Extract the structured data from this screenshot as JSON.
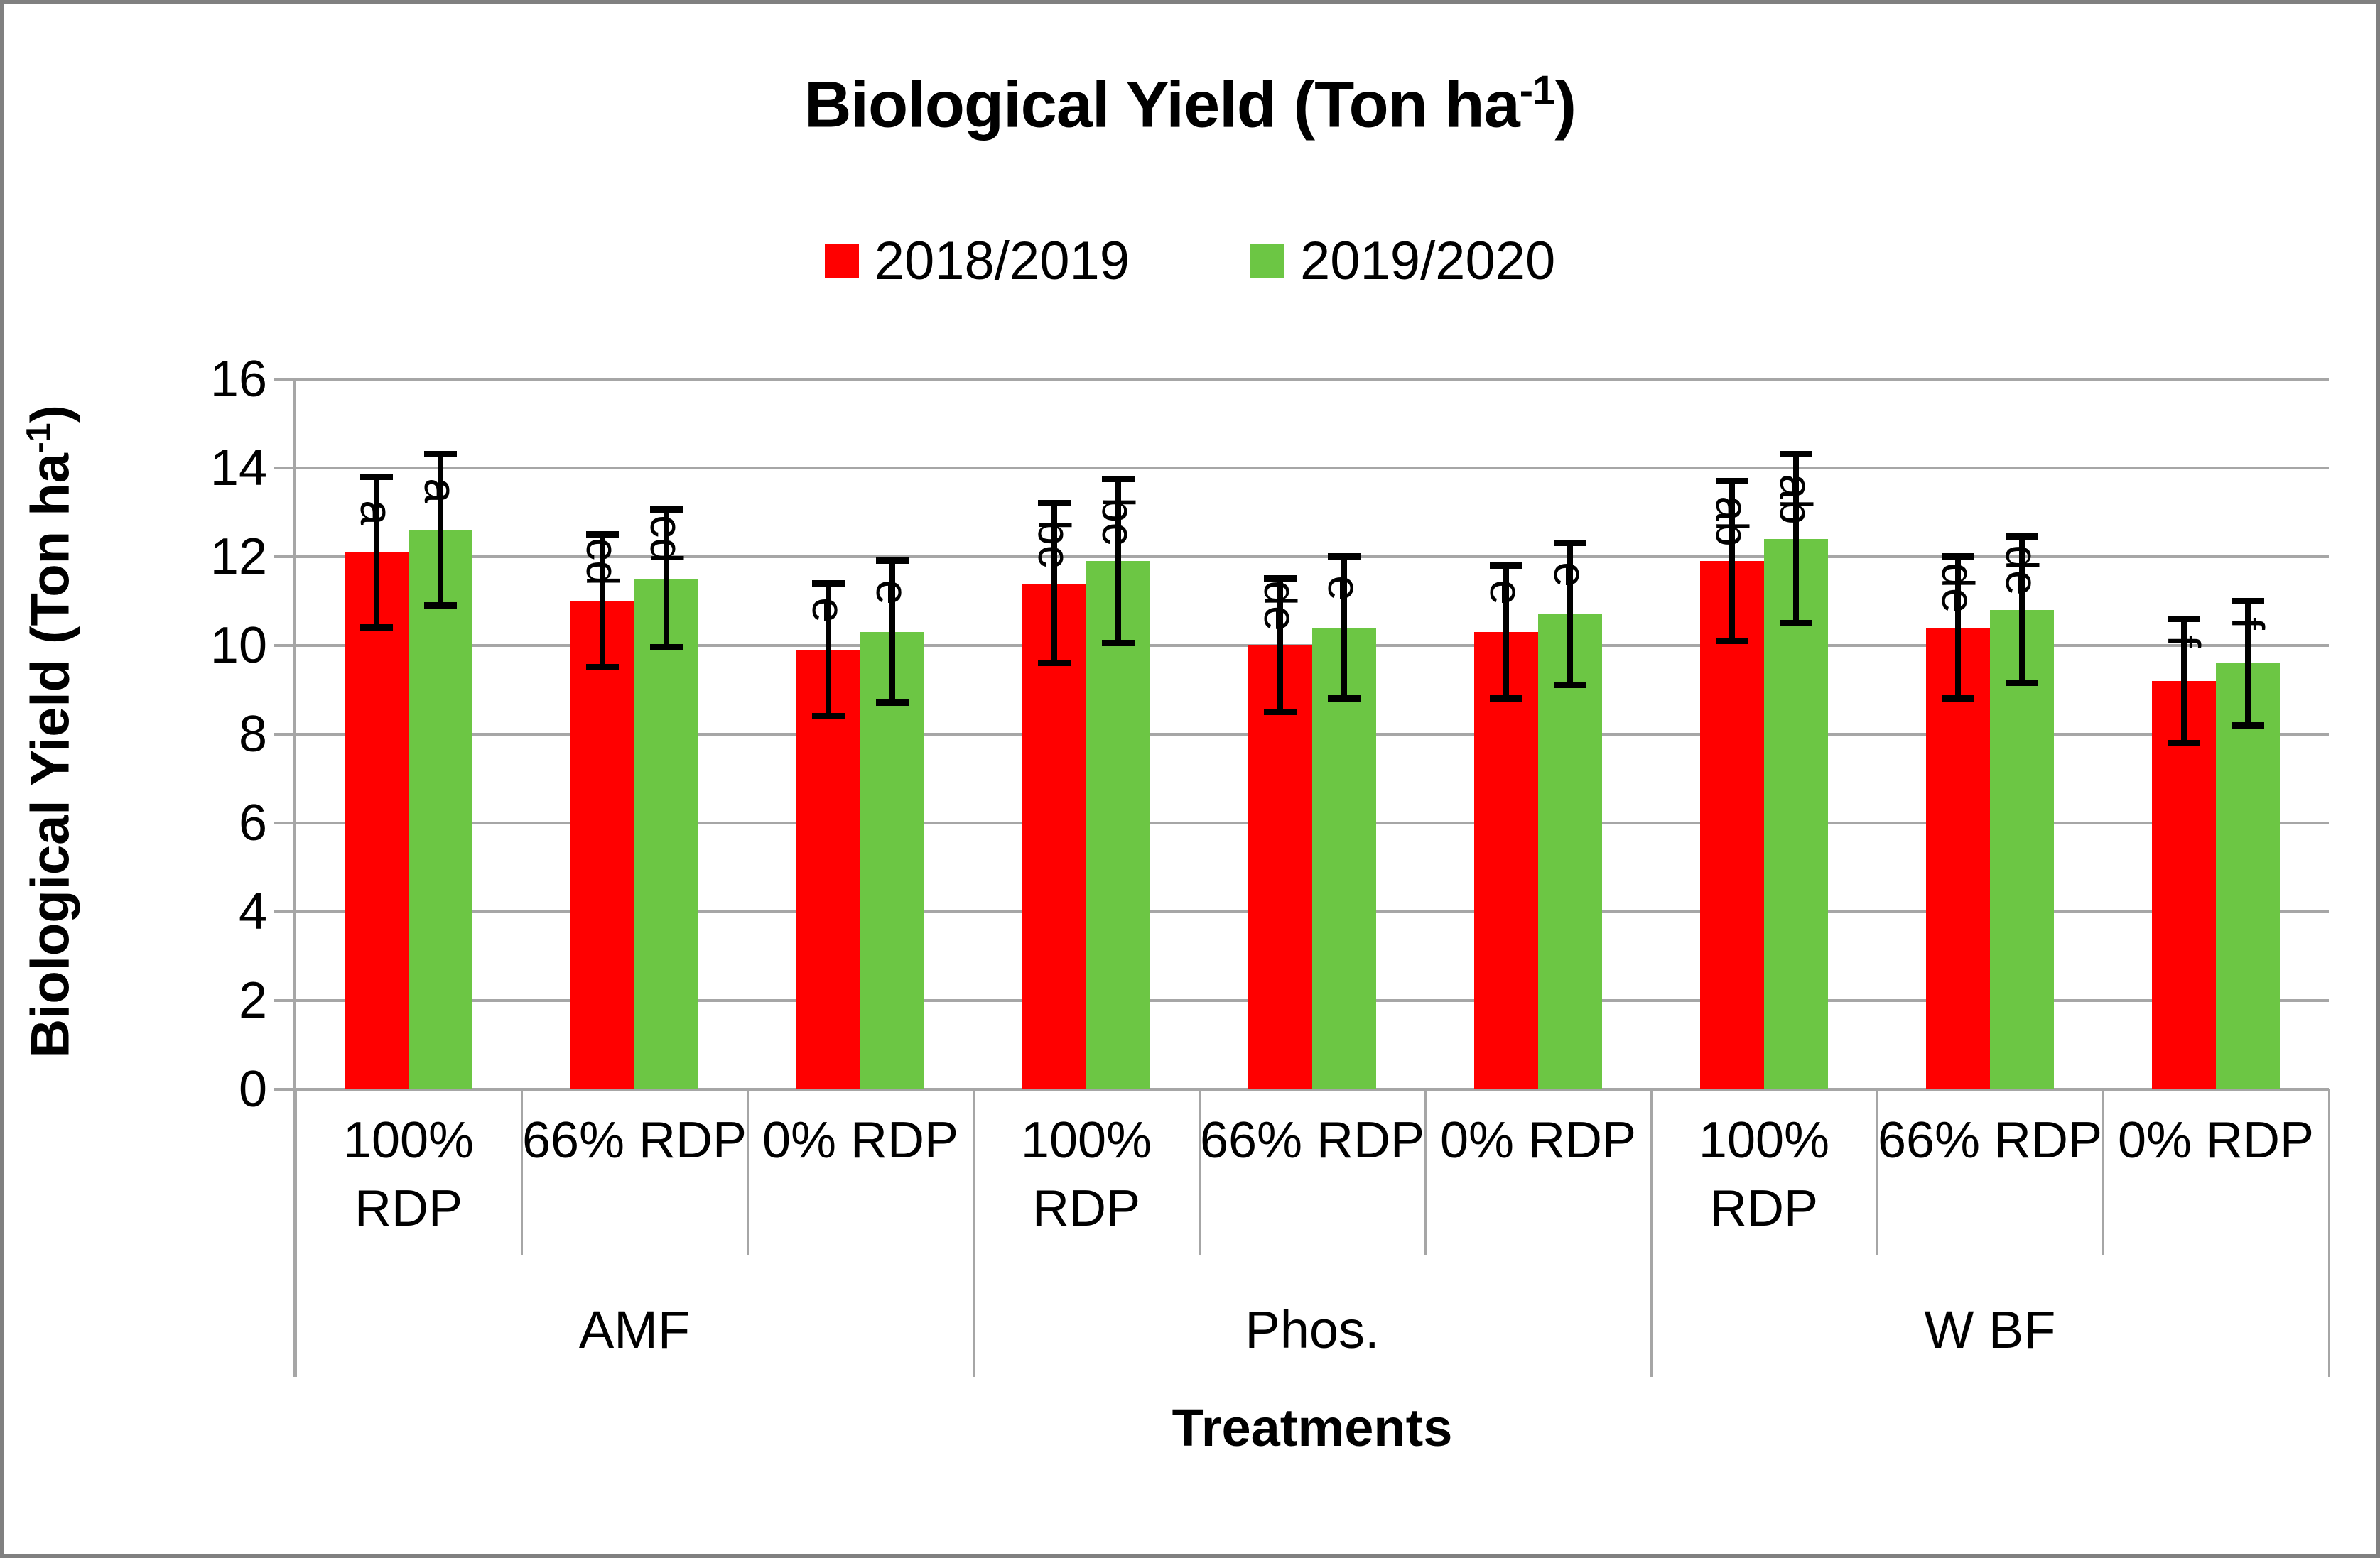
{
  "title": {
    "prefix": "Biological Yield (Ton ha",
    "sup": "-1",
    "suffix": ")",
    "full": "Biological Yield (Ton ha-1)"
  },
  "legend": {
    "items": [
      {
        "label": "2018/2019",
        "color": "#FF0000"
      },
      {
        "label": "2019/2020",
        "color": "#6CC644"
      }
    ]
  },
  "y_axis": {
    "title_prefix": "Biological Yield (Ton ha",
    "title_sup": "-1",
    "title_suffix": ")",
    "ticks": [
      0,
      2,
      4,
      6,
      8,
      10,
      12,
      14,
      16
    ],
    "max": 16
  },
  "x_axis": {
    "title": "Treatments"
  },
  "colors": {
    "gridline": "#A6A6A6",
    "separator": "#A6A6A6",
    "border": "#808080",
    "error_bar": "#000000",
    "text": "#000000"
  },
  "chart_data": {
    "type": "bar",
    "title": "Biological Yield (Ton ha-1)",
    "xlabel": "Treatments",
    "ylabel": "Biological Yield (Ton ha-1)",
    "ylim": [
      0,
      16
    ],
    "ytick_step": 2,
    "grid": true,
    "legend_position": "top-center",
    "groups": [
      {
        "label": "AMF",
        "categories": [
          [
            "100%",
            "RDP"
          ],
          [
            "66% RDP"
          ],
          [
            "0% RDP"
          ]
        ]
      },
      {
        "label": "Phos.",
        "categories": [
          [
            "100%",
            "RDP"
          ],
          [
            "66% RDP"
          ],
          [
            "0% RDP"
          ]
        ]
      },
      {
        "label": "W BF",
        "categories": [
          [
            "100%",
            "RDP"
          ],
          [
            "66% RDP"
          ],
          [
            "0% RDP"
          ]
        ]
      }
    ],
    "series": [
      {
        "name": "2018/2019",
        "color": "#FF0000",
        "values": [
          12.1,
          11.0,
          9.9,
          11.4,
          10.0,
          10.3,
          11.9,
          10.4,
          9.2
        ],
        "error_bars": [
          1.7,
          1.5,
          1.5,
          1.8,
          1.5,
          1.5,
          1.8,
          1.6,
          1.4
        ],
        "sig_letters": [
          "a",
          "cd",
          "e",
          "bc",
          "de",
          "e",
          "ab",
          "de",
          "f"
        ]
      },
      {
        "name": "2019/2020",
        "color": "#6CC644",
        "values": [
          12.6,
          11.5,
          10.3,
          11.9,
          10.4,
          10.7,
          12.4,
          10.8,
          9.6
        ],
        "error_bars": [
          1.7,
          1.55,
          1.6,
          1.85,
          1.6,
          1.6,
          1.9,
          1.65,
          1.4
        ],
        "sig_letters": [
          "a",
          "cd",
          "e",
          "bc",
          "e",
          "e",
          "ab",
          "de",
          "f"
        ]
      }
    ]
  }
}
